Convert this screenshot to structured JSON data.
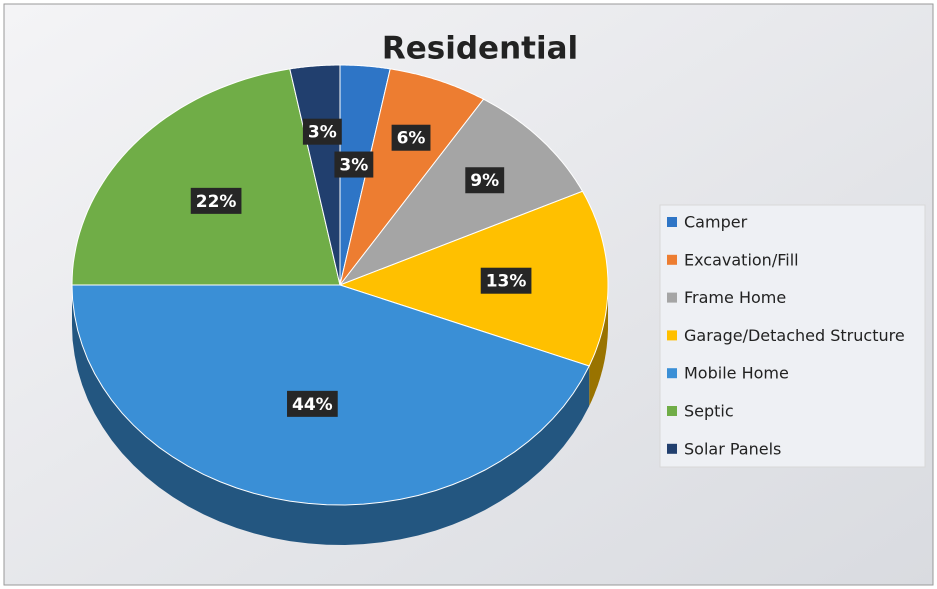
{
  "chart_data": {
    "type": "pie",
    "title": "Residential",
    "categories": [
      "Camper",
      "Excavation/Fill",
      "Frame Home",
      "Garage/Detached Structure",
      "Mobile Home",
      "Septic",
      "Solar Panels"
    ],
    "values": [
      3,
      6,
      9,
      13,
      44,
      22,
      3
    ],
    "value_labels": [
      "3%",
      "6%",
      "9%",
      "13%",
      "44%",
      "22%",
      "3%"
    ],
    "colors": [
      "#2e75c6",
      "#ed7d31",
      "#a5a5a5",
      "#ffc000",
      "#3a8fd6",
      "#70ad47",
      "#213f6e"
    ],
    "legend": "right"
  }
}
